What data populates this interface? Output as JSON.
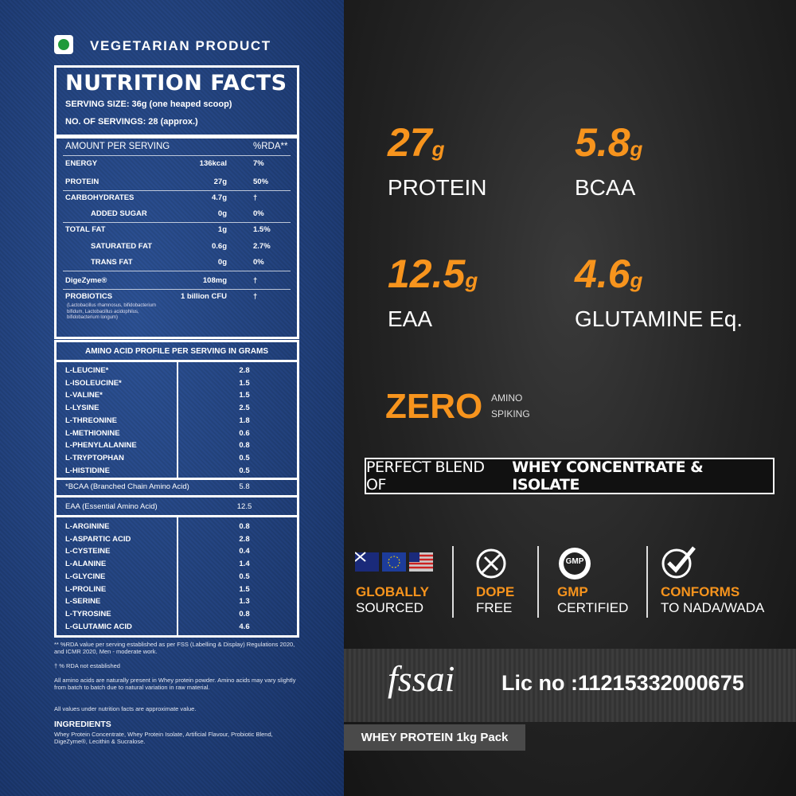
{
  "vegetarian_label": "VEGETARIAN PRODUCT",
  "nutrition": {
    "title": "NUTRITION FACTS",
    "serving_size": "SERVING SIZE: 36g (one heaped scoop)",
    "servings": "NO. OF SERVINGS: 28 (approx.)",
    "header": [
      "AMOUNT PER SERVING",
      "%RDA**"
    ],
    "rows": [
      [
        "ENERGY",
        "136kcal",
        "7%"
      ],
      [
        "PROTEIN",
        "27g",
        "50%"
      ],
      [
        "CARBOHYDRATES",
        "4.7g",
        "†"
      ],
      [
        "ADDED SUGAR",
        "0g",
        "0%"
      ],
      [
        "TOTAL FAT",
        "1g",
        "1.5%"
      ],
      [
        "SATURATED FAT",
        "0.6g",
        "2.7%"
      ],
      [
        "TRANS FAT",
        "0g",
        "0%"
      ],
      [
        "DigeZyme®",
        "108mg",
        "†"
      ],
      [
        "PROBIOTICS",
        "1 billion CFU",
        "†"
      ]
    ],
    "probiotics_note": "(Lactobacillus rhamnosus, bifidobacterium bifidum, Lactobacillus acidophilus, bifidobacterium longum)"
  },
  "amino": {
    "title": "AMINO ACID PROFILE PER SERVING IN GRAMS",
    "essential": [
      [
        "L-LEUCINE*",
        "2.8"
      ],
      [
        "L-ISOLEUCINE*",
        "1.5"
      ],
      [
        "L-VALINE*",
        "1.5"
      ],
      [
        "L-LYSINE",
        "2.5"
      ],
      [
        "L-THREONINE",
        "1.8"
      ],
      [
        "L-METHIONINE",
        "0.6"
      ],
      [
        "L-PHENYLALANINE",
        "0.8"
      ],
      [
        "L-TRYPTOPHAN",
        "0.5"
      ],
      [
        "L-HISTIDINE",
        "0.5"
      ]
    ],
    "bcaa": [
      "*BCAA (Branched Chain Amino Acid)",
      "5.8"
    ],
    "eaa": [
      "EAA (Essential Amino Acid)",
      "12.5"
    ],
    "others": [
      [
        "L-ARGININE",
        "0.8"
      ],
      [
        "L-ASPARTIC ACID",
        "2.8"
      ],
      [
        "L-CYSTEINE",
        "0.4"
      ],
      [
        "L-ALANINE",
        "1.4"
      ],
      [
        "L-GLYCINE",
        "0.5"
      ],
      [
        "L-PROLINE",
        "1.5"
      ],
      [
        "L-SERINE",
        "1.3"
      ],
      [
        "L-TYROSINE",
        "0.8"
      ],
      [
        "L-GLUTAMIC ACID",
        "4.6"
      ]
    ]
  },
  "footnotes": [
    "** %RDA value per serving established as per FSS (Labelling & Display) Regulations 2020, and ICMR 2020, Men - moderate work.",
    "† % RDA not established",
    "All amino acids are naturally present in Whey protein powder. Amino acids may vary slightly from batch to batch due to natural variation in raw material.",
    "All values under nutrition facts are approximate value."
  ],
  "ingredients": {
    "title": "INGREDIENTS",
    "text": "Whey Protein Concentrate, Whey Protein Isolate, Artificial Flavour, Probiotic Blend, DigeZyme®, Lecithin & Sucralose."
  },
  "stats": [
    {
      "value": "27",
      "unit": "g",
      "label": "PROTEIN"
    },
    {
      "value": "5.8",
      "unit": "g",
      "label": "BCAA"
    },
    {
      "value": "12.5",
      "unit": "g",
      "label": "EAA"
    },
    {
      "value": "4.6",
      "unit": "g",
      "label": "GLUTAMINE Eq."
    }
  ],
  "zero": {
    "title": "ZERO",
    "line1": "AMINO",
    "line2": "SPIKING"
  },
  "banner": {
    "prefix": "PERFECT BLEND OF",
    "bold": "WHEY CONCENTRATE & ISOLATE"
  },
  "badges": [
    {
      "title": "GLOBALLY",
      "subtitle": "SOURCED"
    },
    {
      "title": "DOPE",
      "subtitle": "FREE"
    },
    {
      "title": "GMP",
      "subtitle": "CERTIFIED",
      "icon_text": "GMP"
    },
    {
      "title": "CONFORMS",
      "subtitle": "TO NADA/WADA"
    }
  ],
  "fssai": {
    "logo": "fssai",
    "license": "Lic no :11215332000675"
  },
  "pack": "WHEY PROTEIN 1kg Pack"
}
